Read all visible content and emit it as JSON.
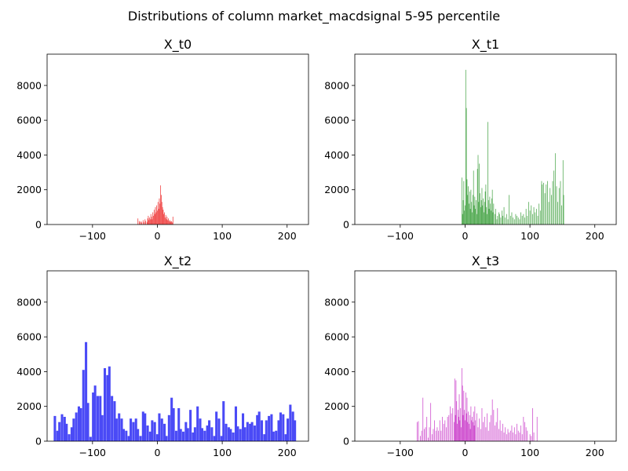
{
  "figure_title": "Distributions of column market_macdsignal 5-95 percentile",
  "chart_data": [
    {
      "type": "bar",
      "title": "X_t0",
      "color": "#f04a4a",
      "xlim": [
        -170,
        233
      ],
      "ylim": [
        0,
        9800
      ],
      "xticks": [
        -100,
        0,
        100,
        200
      ],
      "yticks": [
        0,
        2000,
        4000,
        6000,
        8000
      ],
      "bin_width": 1,
      "bins": [
        [
          -30,
          350
        ],
        [
          -28,
          200
        ],
        [
          -27,
          150
        ],
        [
          -25,
          180
        ],
        [
          -24,
          120
        ],
        [
          -22,
          250
        ],
        [
          -21,
          140
        ],
        [
          -19,
          300
        ],
        [
          -18,
          200
        ],
        [
          -16,
          150
        ],
        [
          -15,
          350
        ],
        [
          -14,
          500
        ],
        [
          -13,
          250
        ],
        [
          -12,
          400
        ],
        [
          -11,
          300
        ],
        [
          -10,
          600
        ],
        [
          -9,
          450
        ],
        [
          -8,
          300
        ],
        [
          -7,
          700
        ],
        [
          -6,
          500
        ],
        [
          -5,
          850
        ],
        [
          -4,
          600
        ],
        [
          -3,
          1000
        ],
        [
          -2,
          700
        ],
        [
          -1,
          1100
        ],
        [
          0,
          800
        ],
        [
          1,
          1300
        ],
        [
          2,
          900
        ],
        [
          3,
          1500
        ],
        [
          4,
          1200
        ],
        [
          5,
          2250
        ],
        [
          6,
          1700
        ],
        [
          7,
          1300
        ],
        [
          8,
          1000
        ],
        [
          9,
          850
        ],
        [
          10,
          600
        ],
        [
          11,
          700
        ],
        [
          12,
          400
        ],
        [
          13,
          550
        ],
        [
          14,
          300
        ],
        [
          15,
          450
        ],
        [
          16,
          250
        ],
        [
          17,
          350
        ],
        [
          18,
          200
        ],
        [
          19,
          250
        ],
        [
          20,
          150
        ],
        [
          21,
          200
        ],
        [
          22,
          180
        ],
        [
          23,
          120
        ],
        [
          24,
          450
        ]
      ]
    },
    {
      "type": "bar",
      "title": "X_t1",
      "color": "#4aa64a",
      "xlim": [
        -170,
        233
      ],
      "ylim": [
        0,
        9800
      ],
      "xticks": [
        -100,
        0,
        100,
        200
      ],
      "yticks": [
        0,
        2000,
        4000,
        6000,
        8000
      ],
      "bin_width": 0.9,
      "bins": [
        [
          -5,
          2700
        ],
        [
          -4,
          600
        ],
        [
          -3,
          1400
        ],
        [
          -2,
          2500
        ],
        [
          -1,
          800
        ],
        [
          0,
          1100
        ],
        [
          1,
          8900
        ],
        [
          2,
          6700
        ],
        [
          3,
          2600
        ],
        [
          4,
          1700
        ],
        [
          5,
          2200
        ],
        [
          6,
          1200
        ],
        [
          7,
          1900
        ],
        [
          8,
          900
        ],
        [
          9,
          2000
        ],
        [
          10,
          1300
        ],
        [
          11,
          700
        ],
        [
          12,
          1700
        ],
        [
          13,
          3100
        ],
        [
          14,
          1100
        ],
        [
          15,
          1600
        ],
        [
          16,
          900
        ],
        [
          17,
          1400
        ],
        [
          18,
          600
        ],
        [
          19,
          3200
        ],
        [
          20,
          4000
        ],
        [
          21,
          1300
        ],
        [
          22,
          3500
        ],
        [
          23,
          1800
        ],
        [
          24,
          1000
        ],
        [
          25,
          1400
        ],
        [
          26,
          2100
        ],
        [
          27,
          1100
        ],
        [
          28,
          1500
        ],
        [
          29,
          700
        ],
        [
          30,
          1300
        ],
        [
          31,
          1900
        ],
        [
          32,
          2300
        ],
        [
          33,
          1000
        ],
        [
          34,
          600
        ],
        [
          35,
          5900
        ],
        [
          36,
          1400
        ],
        [
          37,
          900
        ],
        [
          38,
          1600
        ],
        [
          39,
          1200
        ],
        [
          40,
          800
        ],
        [
          41,
          1500
        ],
        [
          42,
          2000
        ],
        [
          43,
          700
        ],
        [
          44,
          1200
        ],
        [
          46,
          600
        ],
        [
          47,
          900
        ],
        [
          49,
          300
        ],
        [
          50,
          500
        ],
        [
          52,
          700
        ],
        [
          53,
          600
        ],
        [
          55,
          400
        ],
        [
          57,
          800
        ],
        [
          58,
          500
        ],
        [
          60,
          1000
        ],
        [
          62,
          400
        ],
        [
          64,
          600
        ],
        [
          66,
          300
        ],
        [
          68,
          1700
        ],
        [
          70,
          500
        ],
        [
          72,
          700
        ],
        [
          74,
          400
        ],
        [
          76,
          300
        ],
        [
          78,
          600
        ],
        [
          80,
          500
        ],
        [
          82,
          400
        ],
        [
          84,
          300
        ],
        [
          86,
          700
        ],
        [
          88,
          500
        ],
        [
          90,
          600
        ],
        [
          92,
          400
        ],
        [
          94,
          900
        ],
        [
          96,
          500
        ],
        [
          98,
          1300
        ],
        [
          100,
          800
        ],
        [
          102,
          1100
        ],
        [
          104,
          600
        ],
        [
          106,
          1000
        ],
        [
          108,
          700
        ],
        [
          110,
          900
        ],
        [
          112,
          500
        ],
        [
          114,
          1200
        ],
        [
          116,
          800
        ],
        [
          118,
          2500
        ],
        [
          119,
          2300
        ],
        [
          121,
          2400
        ],
        [
          123,
          1800
        ],
        [
          125,
          2300
        ],
        [
          127,
          2500
        ],
        [
          129,
          1300
        ],
        [
          131,
          2100
        ],
        [
          133,
          1700
        ],
        [
          135,
          2500
        ],
        [
          137,
          3100
        ],
        [
          139,
          4100
        ],
        [
          141,
          2200
        ],
        [
          143,
          1300
        ],
        [
          145,
          2100
        ],
        [
          147,
          2500
        ],
        [
          149,
          1100
        ],
        [
          151,
          3700
        ],
        [
          152,
          1700
        ]
      ]
    },
    {
      "type": "bar",
      "title": "X_t2",
      "color": "#4a4af6",
      "xlim": [
        -170,
        233
      ],
      "ylim": [
        0,
        9800
      ],
      "xticks": [
        -100,
        0,
        100,
        200
      ],
      "yticks": [
        0,
        2000,
        4000,
        6000,
        8000
      ],
      "bin_width": 3.7,
      "bins": [
        [
          -158,
          1450
        ],
        [
          -154,
          600
        ],
        [
          -151,
          1100
        ],
        [
          -147,
          1550
        ],
        [
          -143,
          1400
        ],
        [
          -140,
          1000
        ],
        [
          -136,
          400
        ],
        [
          -132,
          800
        ],
        [
          -129,
          1300
        ],
        [
          -125,
          1650
        ],
        [
          -121,
          2000
        ],
        [
          -118,
          1900
        ],
        [
          -114,
          4100
        ],
        [
          -110,
          5700
        ],
        [
          -107,
          2200
        ],
        [
          -103,
          250
        ],
        [
          -99,
          2800
        ],
        [
          -96,
          3200
        ],
        [
          -92,
          2600
        ],
        [
          -88,
          2600
        ],
        [
          -85,
          1500
        ],
        [
          -81,
          4200
        ],
        [
          -77,
          3800
        ],
        [
          -74,
          4300
        ],
        [
          -70,
          2600
        ],
        [
          -66,
          2300
        ],
        [
          -63,
          1300
        ],
        [
          -59,
          1600
        ],
        [
          -55,
          1300
        ],
        [
          -52,
          700
        ],
        [
          -48,
          600
        ],
        [
          -44,
          300
        ],
        [
          -41,
          1300
        ],
        [
          -37,
          1100
        ],
        [
          -33,
          1300
        ],
        [
          -30,
          700
        ],
        [
          -26,
          300
        ],
        [
          -22,
          1700
        ],
        [
          -19,
          1600
        ],
        [
          -15,
          900
        ],
        [
          -11,
          550
        ],
        [
          -8,
          1200
        ],
        [
          -4,
          1100
        ],
        [
          0,
          400
        ],
        [
          3,
          1600
        ],
        [
          7,
          1300
        ],
        [
          11,
          1000
        ],
        [
          14,
          300
        ],
        [
          18,
          1500
        ],
        [
          22,
          2500
        ],
        [
          25,
          1900
        ],
        [
          29,
          600
        ],
        [
          33,
          1900
        ],
        [
          36,
          700
        ],
        [
          40,
          550
        ],
        [
          44,
          1100
        ],
        [
          47,
          750
        ],
        [
          51,
          1800
        ],
        [
          55,
          500
        ],
        [
          58,
          800
        ],
        [
          62,
          2000
        ],
        [
          66,
          1300
        ],
        [
          69,
          750
        ],
        [
          73,
          600
        ],
        [
          77,
          900
        ],
        [
          80,
          1200
        ],
        [
          84,
          800
        ],
        [
          88,
          300
        ],
        [
          91,
          1700
        ],
        [
          95,
          1300
        ],
        [
          99,
          300
        ],
        [
          102,
          2300
        ],
        [
          106,
          1000
        ],
        [
          110,
          800
        ],
        [
          113,
          700
        ],
        [
          117,
          500
        ],
        [
          121,
          2000
        ],
        [
          124,
          850
        ],
        [
          128,
          700
        ],
        [
          132,
          1600
        ],
        [
          135,
          800
        ],
        [
          139,
          1100
        ],
        [
          143,
          1000
        ],
        [
          146,
          1100
        ],
        [
          150,
          900
        ],
        [
          154,
          1500
        ],
        [
          157,
          1700
        ],
        [
          161,
          1200
        ],
        [
          165,
          400
        ],
        [
          168,
          1200
        ],
        [
          172,
          1450
        ],
        [
          176,
          1550
        ],
        [
          179,
          550
        ],
        [
          183,
          600
        ],
        [
          187,
          1200
        ],
        [
          190,
          1650
        ],
        [
          194,
          1550
        ],
        [
          198,
          400
        ],
        [
          201,
          1300
        ],
        [
          205,
          2100
        ],
        [
          209,
          1700
        ],
        [
          212,
          1200
        ]
      ]
    },
    {
      "type": "bar",
      "title": "X_t3",
      "color": "#cc44cc",
      "xlim": [
        -170,
        233
      ],
      "ylim": [
        0,
        9800
      ],
      "xticks": [
        -100,
        0,
        100,
        200
      ],
      "yticks": [
        0,
        2000,
        4000,
        6000,
        8000
      ],
      "bin_width": 0.9,
      "bins": [
        [
          -74,
          1100
        ],
        [
          -72,
          1150
        ],
        [
          -69,
          300
        ],
        [
          -67,
          600
        ],
        [
          -65,
          2500
        ],
        [
          -63,
          700
        ],
        [
          -61,
          800
        ],
        [
          -59,
          1400
        ],
        [
          -57,
          200
        ],
        [
          -55,
          800
        ],
        [
          -53,
          2200
        ],
        [
          -51,
          400
        ],
        [
          -49,
          700
        ],
        [
          -47,
          1200
        ],
        [
          -45,
          600
        ],
        [
          -43,
          800
        ],
        [
          -41,
          600
        ],
        [
          -39,
          1200
        ],
        [
          -37,
          600
        ],
        [
          -35,
          1400
        ],
        [
          -33,
          1000
        ],
        [
          -31,
          1200
        ],
        [
          -29,
          800
        ],
        [
          -27,
          1400
        ],
        [
          -25,
          1500
        ],
        [
          -23,
          2000
        ],
        [
          -21,
          1600
        ],
        [
          -19,
          1900
        ],
        [
          -17,
          1100
        ],
        [
          -16,
          3600
        ],
        [
          -15,
          1500
        ],
        [
          -14,
          3500
        ],
        [
          -13,
          2300
        ],
        [
          -12,
          1000
        ],
        [
          -11,
          1800
        ],
        [
          -10,
          1400
        ],
        [
          -9,
          2700
        ],
        [
          -8,
          1200
        ],
        [
          -7,
          1900
        ],
        [
          -6,
          800
        ],
        [
          -5,
          4200
        ],
        [
          -4,
          3200
        ],
        [
          -3,
          1500
        ],
        [
          -2,
          2900
        ],
        [
          -1,
          1800
        ],
        [
          0,
          1200
        ],
        [
          1,
          2800
        ],
        [
          2,
          1600
        ],
        [
          3,
          2500
        ],
        [
          4,
          1100
        ],
        [
          5,
          1700
        ],
        [
          6,
          1000
        ],
        [
          7,
          1500
        ],
        [
          8,
          700
        ],
        [
          9,
          2000
        ],
        [
          10,
          1200
        ],
        [
          11,
          1400
        ],
        [
          12,
          1100
        ],
        [
          13,
          1700
        ],
        [
          14,
          900
        ],
        [
          15,
          2000
        ],
        [
          16,
          1200
        ],
        [
          18,
          1600
        ],
        [
          20,
          800
        ],
        [
          22,
          1300
        ],
        [
          24,
          700
        ],
        [
          26,
          1900
        ],
        [
          28,
          1100
        ],
        [
          30,
          1400
        ],
        [
          32,
          800
        ],
        [
          34,
          1600
        ],
        [
          36,
          600
        ],
        [
          38,
          1100
        ],
        [
          40,
          1500
        ],
        [
          42,
          2400
        ],
        [
          44,
          1800
        ],
        [
          46,
          900
        ],
        [
          48,
          1100
        ],
        [
          50,
          1900
        ],
        [
          52,
          700
        ],
        [
          54,
          1200
        ],
        [
          56,
          600
        ],
        [
          58,
          1000
        ],
        [
          60,
          500
        ],
        [
          62,
          800
        ],
        [
          64,
          400
        ],
        [
          66,
          700
        ],
        [
          68,
          500
        ],
        [
          70,
          600
        ],
        [
          72,
          900
        ],
        [
          74,
          500
        ],
        [
          76,
          800
        ],
        [
          78,
          400
        ],
        [
          80,
          1000
        ],
        [
          82,
          600
        ],
        [
          84,
          500
        ],
        [
          86,
          900
        ],
        [
          88,
          400
        ],
        [
          90,
          1400
        ],
        [
          92,
          1100
        ],
        [
          94,
          800
        ],
        [
          96,
          600
        ],
        [
          100,
          400
        ],
        [
          102,
          300
        ],
        [
          104,
          1900
        ],
        [
          106,
          500
        ],
        [
          111,
          1400
        ]
      ]
    }
  ]
}
